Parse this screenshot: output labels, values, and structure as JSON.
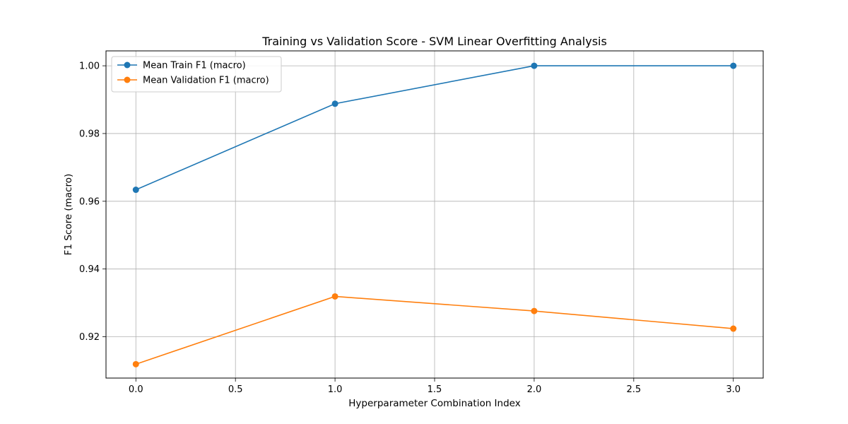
{
  "chart_data": {
    "type": "line",
    "title": "Training vs Validation Score - SVM Linear Overfitting Analysis",
    "xlabel": "Hyperparameter Combination Index",
    "ylabel": "F1 Score (macro)",
    "xlim": [
      -0.15,
      3.15
    ],
    "ylim": [
      0.9078,
      1.0044
    ],
    "xticks": [
      0.0,
      0.5,
      1.0,
      1.5,
      2.0,
      2.5,
      3.0
    ],
    "xtick_labels": [
      "0.0",
      "0.5",
      "1.0",
      "1.5",
      "2.0",
      "2.5",
      "3.0"
    ],
    "yticks": [
      0.92,
      0.94,
      0.96,
      0.98,
      1.0
    ],
    "ytick_labels": [
      "0.92",
      "0.94",
      "0.96",
      "0.98",
      "1.00"
    ],
    "grid": true,
    "legend_position": "top-left",
    "x": [
      0,
      1,
      2,
      3
    ],
    "series": [
      {
        "name": "Mean Train F1 (macro)",
        "color": "#1f77b4",
        "values": [
          0.9634,
          0.9888,
          1.0,
          1.0
        ]
      },
      {
        "name": "Mean Validation F1 (macro)",
        "color": "#ff7f0e",
        "values": [
          0.9119,
          0.9319,
          0.9276,
          0.9224
        ]
      }
    ]
  }
}
